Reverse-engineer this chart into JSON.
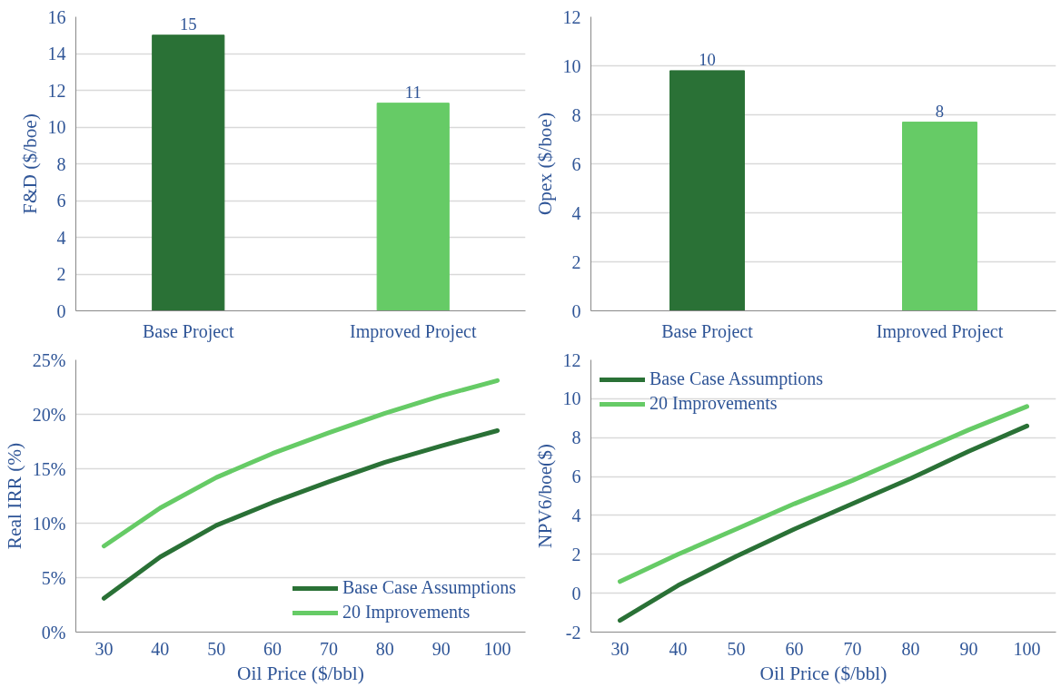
{
  "chart_data": [
    {
      "type": "bar",
      "ylabel": "F&D ($/boe)",
      "categories": [
        "Base Project",
        "Improved Project"
      ],
      "values": [
        15.0,
        11.3
      ],
      "colors": [
        "#2a7136",
        "#66cb66"
      ],
      "value_labels": [
        "15",
        "11"
      ],
      "ylim": [
        0,
        16
      ],
      "yticks": [
        0,
        2,
        4,
        6,
        8,
        10,
        12,
        14,
        16
      ],
      "grid": "y"
    },
    {
      "type": "bar",
      "ylabel": "Opex ($/boe)",
      "categories": [
        "Base Project",
        "Improved Project"
      ],
      "values": [
        9.8,
        7.7
      ],
      "colors": [
        "#2a7136",
        "#66cb66"
      ],
      "value_labels": [
        "10",
        "8"
      ],
      "ylim": [
        0,
        12
      ],
      "yticks": [
        0,
        2,
        4,
        6,
        8,
        10,
        12
      ],
      "grid": "y"
    },
    {
      "type": "line",
      "xlabel": "Oil Price ($/bbl)",
      "ylabel": "Real IRR (%)",
      "categories": [
        "30",
        "40",
        "50",
        "60",
        "70",
        "80",
        "90",
        "100"
      ],
      "series": [
        {
          "name": "Base Case Assumptions",
          "color": "#2a7136",
          "values": [
            3.1,
            6.9,
            9.8,
            11.9,
            13.8,
            15.6,
            17.1,
            18.5
          ]
        },
        {
          "name": "20 Improvements",
          "color": "#66cb66",
          "values": [
            7.9,
            11.4,
            14.2,
            16.4,
            18.3,
            20.1,
            21.7,
            23.1
          ]
        }
      ],
      "ylim": [
        0,
        25
      ],
      "yticks": [
        {
          "value": 0,
          "label": "0%"
        },
        {
          "value": 5,
          "label": "5%"
        },
        {
          "value": 10,
          "label": "10%"
        },
        {
          "value": 15,
          "label": "15%"
        },
        {
          "value": 20,
          "label": "20%"
        },
        {
          "value": 25,
          "label": "25%"
        }
      ],
      "grid": "y",
      "legend": "bottom right"
    },
    {
      "type": "line",
      "xlabel": "Oil Price ($/bbl)",
      "ylabel": "NPV6/boe($)",
      "categories": [
        "30",
        "40",
        "50",
        "60",
        "70",
        "80",
        "90",
        "100"
      ],
      "series": [
        {
          "name": "Base Case Assumptions",
          "color": "#2a7136",
          "values": [
            -1.4,
            0.4,
            1.9,
            3.3,
            4.6,
            5.9,
            7.3,
            8.6
          ]
        },
        {
          "name": "20 Improvements",
          "color": "#66cb66",
          "values": [
            0.6,
            2.0,
            3.3,
            4.6,
            5.8,
            7.1,
            8.4,
            9.6
          ]
        }
      ],
      "ylim": [
        -2,
        12
      ],
      "yticks": [
        -2,
        0,
        2,
        4,
        6,
        8,
        10,
        12
      ],
      "grid": "y",
      "legend": "top left"
    }
  ]
}
